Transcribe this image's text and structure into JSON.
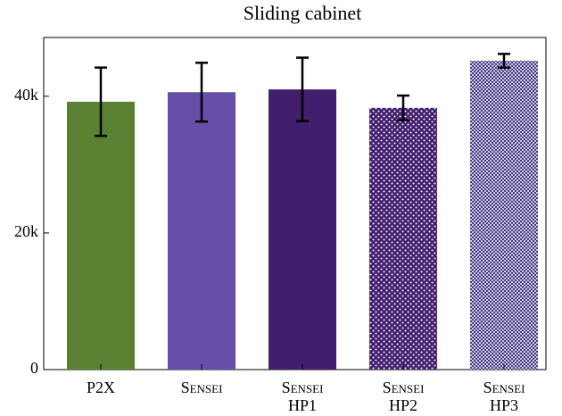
{
  "chart_data": {
    "type": "bar",
    "title": "Sliding cabinet",
    "categories": [
      "P2X",
      "Sensei",
      "Sensei HP1",
      "Sensei HP2",
      "Sensei HP3"
    ],
    "values": [
      39200,
      40600,
      41000,
      38300,
      45200
    ],
    "errors": [
      5000,
      4300,
      4650,
      1800,
      1000
    ],
    "colors": [
      "#5b8233",
      "#664fa6",
      "#421e6e",
      "#421e6e",
      "#3b2a7e"
    ],
    "patterns": [
      null,
      null,
      null,
      "dots",
      "crosshatch"
    ],
    "ylim": [
      0,
      48600
    ],
    "yticks": [
      0,
      {
        "value": 20000,
        "label": "20k"
      },
      {
        "value": 40000,
        "label": "40k"
      }
    ],
    "grid": false
  }
}
